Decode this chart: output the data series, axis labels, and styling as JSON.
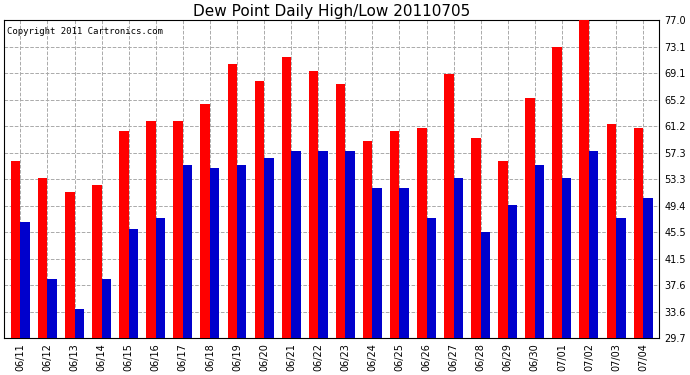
{
  "title": "Dew Point Daily High/Low 20110705",
  "copyright": "Copyright 2011 Cartronics.com",
  "dates": [
    "06/11",
    "06/12",
    "06/13",
    "06/14",
    "06/15",
    "06/16",
    "06/17",
    "06/18",
    "06/19",
    "06/20",
    "06/21",
    "06/22",
    "06/23",
    "06/24",
    "06/25",
    "06/26",
    "06/27",
    "06/28",
    "06/29",
    "06/30",
    "07/01",
    "07/02",
    "07/03",
    "07/04"
  ],
  "highs": [
    56.0,
    53.5,
    51.5,
    52.5,
    60.5,
    62.0,
    62.0,
    64.5,
    70.5,
    68.0,
    71.5,
    69.5,
    67.5,
    59.0,
    60.5,
    61.0,
    69.0,
    59.5,
    56.0,
    65.5,
    73.0,
    77.0,
    61.5,
    61.0
  ],
  "lows": [
    47.0,
    38.5,
    34.0,
    38.5,
    46.0,
    47.5,
    55.5,
    55.0,
    55.5,
    56.5,
    57.5,
    57.5,
    57.5,
    52.0,
    52.0,
    47.5,
    53.5,
    45.5,
    49.5,
    55.5,
    53.5,
    57.5,
    47.5,
    50.5
  ],
  "bar_color_high": "#ff0000",
  "bar_color_low": "#0000cc",
  "background_color": "#ffffff",
  "plot_bg_color": "#ffffff",
  "grid_color": "#aaaaaa",
  "yticks": [
    29.7,
    33.6,
    37.6,
    41.5,
    45.5,
    49.4,
    53.3,
    57.3,
    61.2,
    65.2,
    69.1,
    73.1,
    77.0
  ],
  "ymin": 29.7,
  "ymax": 77.0,
  "bar_width": 0.35,
  "title_fontsize": 11,
  "tick_fontsize": 7,
  "copyright_fontsize": 6.5
}
